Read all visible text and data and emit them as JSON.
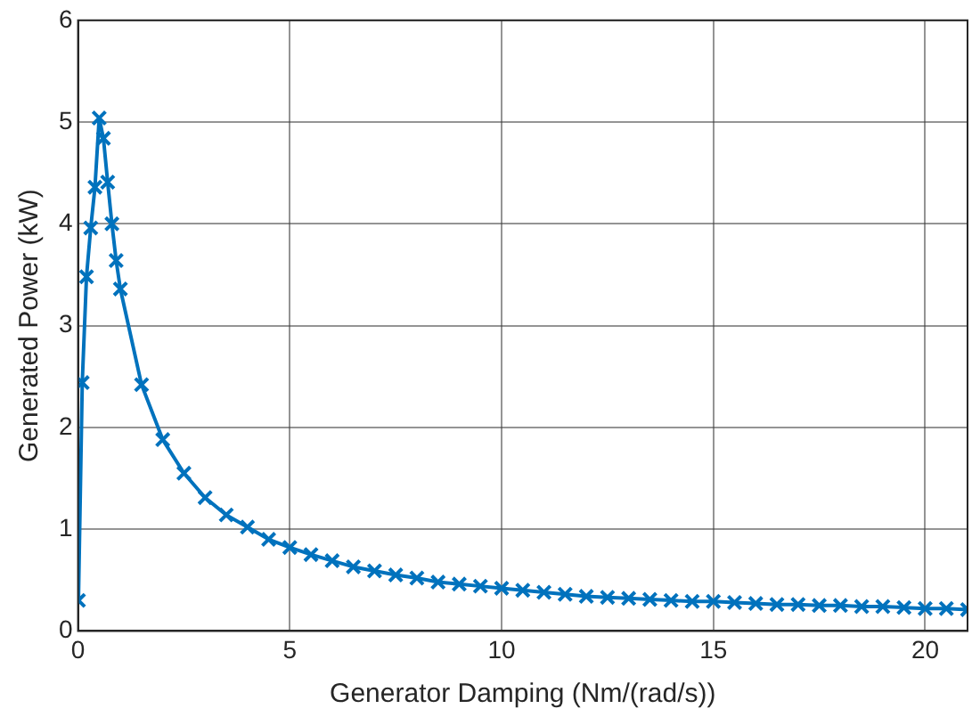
{
  "chart_data": {
    "type": "line",
    "xlabel": "Generator Damping (Nm/(rad/s))",
    "ylabel": "Generated Power (kW)",
    "xlim": [
      0,
      21
    ],
    "xticks": [
      0,
      5,
      10,
      15,
      20
    ],
    "ylim": [
      0,
      6
    ],
    "yticks": [
      0,
      1,
      2,
      3,
      4,
      5,
      6
    ],
    "grid": true,
    "marker": "cross",
    "line_style": "solid",
    "series": [
      {
        "color": "#0072bd",
        "x": [
          0.01,
          0.1,
          0.2,
          0.3,
          0.4,
          0.5,
          0.6,
          0.7,
          0.8,
          0.9,
          1.0,
          1.5,
          2.0,
          2.5,
          3.0,
          3.5,
          4.0,
          4.5,
          5.0,
          5.5,
          6.0,
          6.5,
          7.0,
          7.5,
          8.0,
          8.5,
          9.0,
          9.5,
          10.0,
          10.5,
          11.0,
          11.5,
          12.0,
          12.5,
          13.0,
          13.5,
          14.0,
          14.5,
          15.0,
          15.5,
          16.0,
          16.5,
          17.0,
          17.5,
          18.0,
          18.5,
          19.0,
          19.5,
          20.0,
          20.5,
          21.0
        ],
        "values": [
          0.3,
          2.44,
          3.48,
          3.96,
          4.36,
          5.04,
          4.84,
          4.41,
          4.0,
          3.64,
          3.36,
          2.42,
          1.88,
          1.55,
          1.31,
          1.14,
          1.02,
          0.9,
          0.82,
          0.75,
          0.69,
          0.63,
          0.59,
          0.55,
          0.52,
          0.48,
          0.46,
          0.44,
          0.42,
          0.4,
          0.38,
          0.36,
          0.34,
          0.33,
          0.32,
          0.31,
          0.3,
          0.29,
          0.29,
          0.28,
          0.27,
          0.26,
          0.26,
          0.25,
          0.25,
          0.24,
          0.24,
          0.23,
          0.22,
          0.22,
          0.21
        ]
      }
    ]
  }
}
